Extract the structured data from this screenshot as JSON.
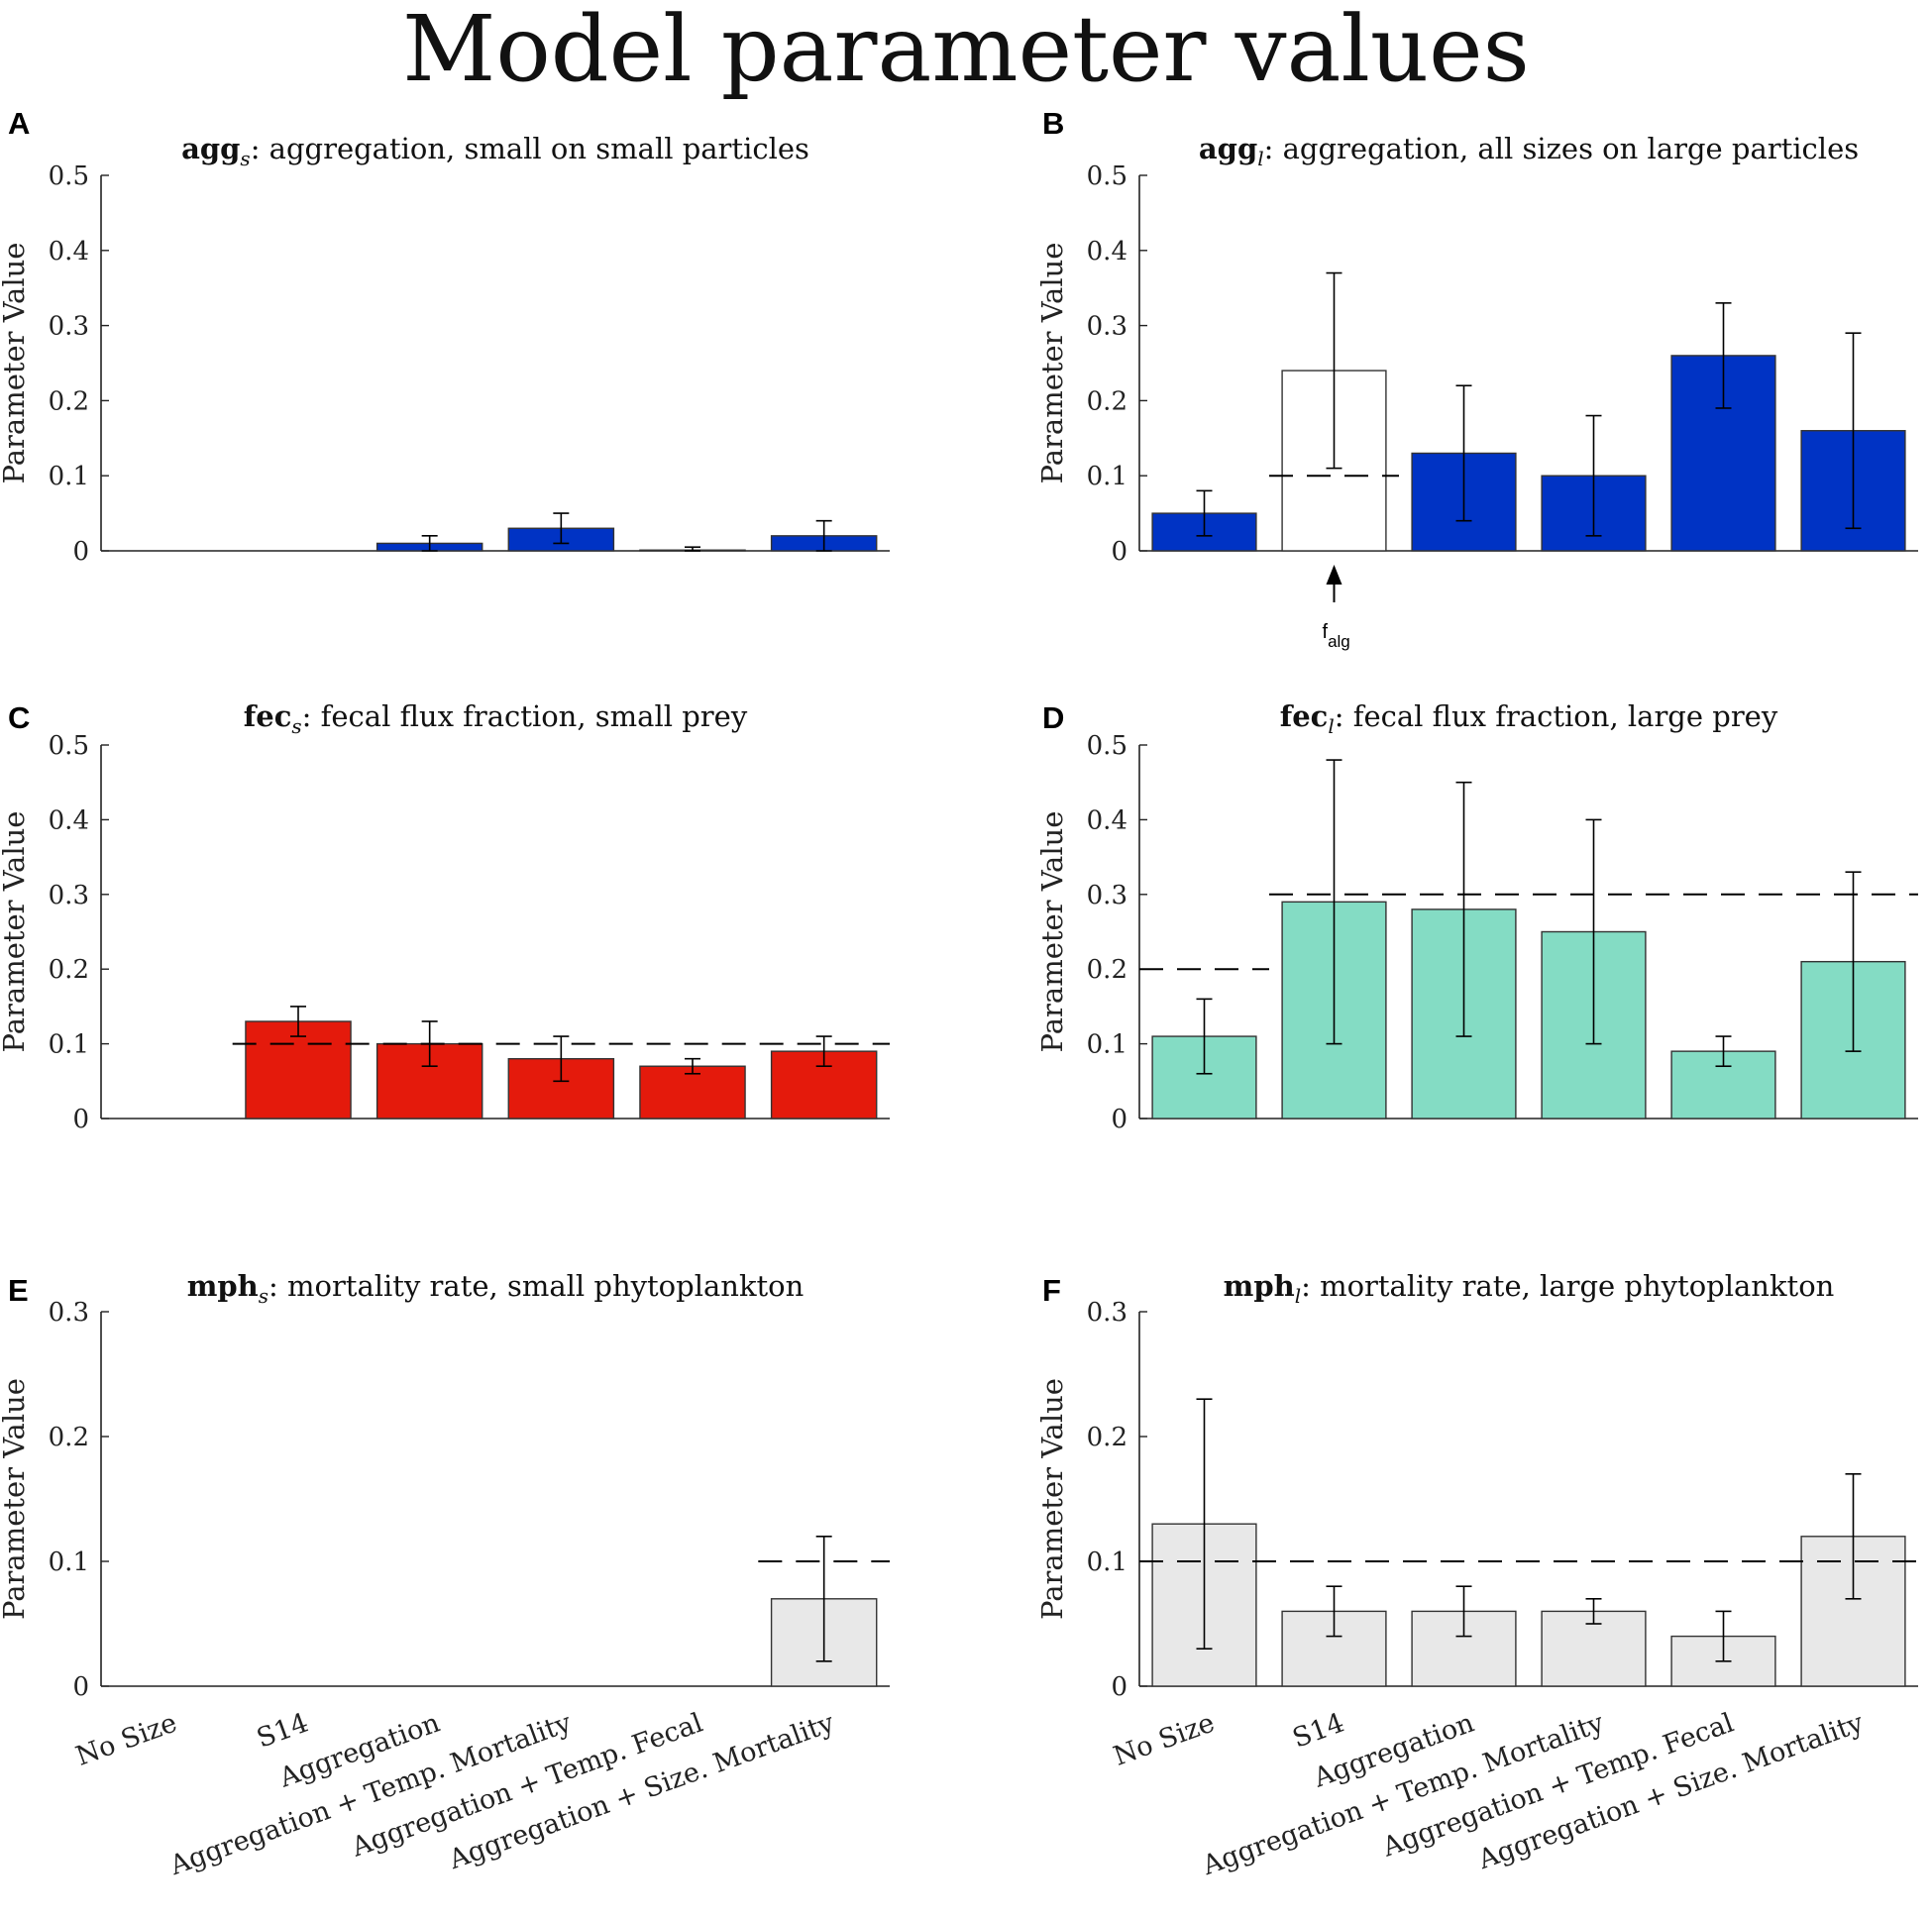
{
  "figure_title": "Model parameter values",
  "shared": {
    "ylabel": "Parameter Value",
    "categories": [
      "No Size",
      "S14",
      "Aggregation",
      "Aggregation + Temp. Mortality",
      "Aggregation + Temp. Fecal",
      "Aggregation + Size. Mortality"
    ]
  },
  "colors": {
    "blue": "#0033c4",
    "red": "#e41a0c",
    "teal": "#84dcc4",
    "grey": "#e8e8e8",
    "white": "#ffffff",
    "axis": "#222222"
  },
  "chart_data": [
    {
      "panel": "A",
      "type": "bar",
      "title_bold": "agg",
      "title_sub": "s",
      "title_rest": ": aggregation, small on small particles",
      "ylabel": "Parameter Value",
      "ylim": [
        0,
        0.5
      ],
      "yticks": [
        "0",
        "0.1",
        "0.2",
        "0.3",
        "0.4",
        "0.5"
      ],
      "categories": [
        "No Size",
        "S14",
        "Aggregation",
        "Aggregation + Temp. Mortality",
        "Aggregation + Temp. Fecal",
        "Aggregation + Size. Mortality"
      ],
      "values": [
        0,
        0,
        0.01,
        0.03,
        0.001,
        0.02
      ],
      "err_low": [
        null,
        null,
        0.0,
        0.01,
        0.0,
        0.0
      ],
      "err_high": [
        null,
        null,
        0.02,
        0.05,
        0.005,
        0.04
      ],
      "bar_colors": [
        "blue",
        "blue",
        "blue",
        "blue",
        "blue",
        "blue"
      ],
      "reference_lines": [],
      "show_xlabels": false
    },
    {
      "panel": "B",
      "type": "bar",
      "title_bold": "agg",
      "title_sub": "l",
      "title_rest": ": aggregation, all sizes on large particles",
      "ylabel": "Parameter Value",
      "ylim": [
        0,
        0.5
      ],
      "yticks": [
        "0",
        "0.1",
        "0.2",
        "0.3",
        "0.4",
        "0.5"
      ],
      "categories": [
        "No Size",
        "S14",
        "Aggregation",
        "Aggregation + Temp. Mortality",
        "Aggregation + Temp. Fecal",
        "Aggregation + Size. Mortality"
      ],
      "values": [
        0.05,
        0.24,
        0.13,
        0.1,
        0.26,
        0.16
      ],
      "err_low": [
        0.02,
        0.11,
        0.04,
        0.02,
        0.19,
        0.03
      ],
      "err_high": [
        0.08,
        0.37,
        0.22,
        0.18,
        0.33,
        0.29
      ],
      "bar_colors": [
        "blue",
        "white",
        "blue",
        "blue",
        "blue",
        "blue"
      ],
      "reference_lines": [
        {
          "y": 0.1,
          "from": 1,
          "to": 1
        }
      ],
      "annotation": {
        "base": "f",
        "sub": "alg",
        "category_index": 1
      },
      "show_xlabels": false
    },
    {
      "panel": "C",
      "type": "bar",
      "title_bold": "fec",
      "title_sub": "s",
      "title_rest": ": fecal flux fraction, small prey",
      "ylabel": "Parameter Value",
      "ylim": [
        0,
        0.5
      ],
      "yticks": [
        "0",
        "0.1",
        "0.2",
        "0.3",
        "0.4",
        "0.5"
      ],
      "categories": [
        "No Size",
        "S14",
        "Aggregation",
        "Aggregation + Temp. Mortality",
        "Aggregation + Temp. Fecal",
        "Aggregation + Size. Mortality"
      ],
      "values": [
        0,
        0.13,
        0.1,
        0.08,
        0.07,
        0.09
      ],
      "err_low": [
        null,
        0.11,
        0.07,
        0.05,
        0.06,
        0.07
      ],
      "err_high": [
        null,
        0.15,
        0.13,
        0.11,
        0.08,
        0.11
      ],
      "bar_colors": [
        "red",
        "red",
        "red",
        "red",
        "red",
        "red"
      ],
      "reference_lines": [
        {
          "y": 0.1,
          "from": 1,
          "to": 5
        }
      ],
      "show_xlabels": false
    },
    {
      "panel": "D",
      "type": "bar",
      "title_bold": "fec",
      "title_sub": "l",
      "title_rest": ": fecal flux fraction, large prey",
      "ylabel": "Parameter Value",
      "ylim": [
        0,
        0.5
      ],
      "yticks": [
        "0",
        "0.1",
        "0.2",
        "0.3",
        "0.4",
        "0.5"
      ],
      "categories": [
        "No Size",
        "S14",
        "Aggregation",
        "Aggregation + Temp. Mortality",
        "Aggregation + Temp. Fecal",
        "Aggregation + Size. Mortality"
      ],
      "values": [
        0.11,
        0.29,
        0.28,
        0.25,
        0.09,
        0.21
      ],
      "err_low": [
        0.06,
        0.1,
        0.11,
        0.1,
        0.07,
        0.09
      ],
      "err_high": [
        0.16,
        0.48,
        0.45,
        0.4,
        0.11,
        0.33
      ],
      "bar_colors": [
        "teal",
        "teal",
        "teal",
        "teal",
        "teal",
        "teal"
      ],
      "reference_lines": [
        {
          "y": 0.2,
          "from": 0,
          "to": 0
        },
        {
          "y": 0.3,
          "from": 1,
          "to": 5
        }
      ],
      "show_xlabels": false
    },
    {
      "panel": "E",
      "type": "bar",
      "title_bold": "mph",
      "title_sub": "s",
      "title_rest": ": mortality rate, small phytoplankton",
      "ylabel": "Parameter Value",
      "ylim": [
        0,
        0.3
      ],
      "yticks": [
        "0",
        "0.1",
        "0.2",
        "0.3"
      ],
      "categories": [
        "No Size",
        "S14",
        "Aggregation",
        "Aggregation + Temp. Mortality",
        "Aggregation + Temp. Fecal",
        "Aggregation + Size. Mortality"
      ],
      "values": [
        0,
        0,
        0,
        0,
        0,
        0.07
      ],
      "err_low": [
        null,
        null,
        null,
        null,
        null,
        0.02
      ],
      "err_high": [
        null,
        null,
        null,
        null,
        null,
        0.12
      ],
      "bar_colors": [
        "grey",
        "grey",
        "grey",
        "grey",
        "grey",
        "grey"
      ],
      "reference_lines": [
        {
          "y": 0.1,
          "from": 5,
          "to": 5
        }
      ],
      "show_xlabels": true
    },
    {
      "panel": "F",
      "type": "bar",
      "title_bold": "mph",
      "title_sub": "l",
      "title_rest": ": mortality rate, large phytoplankton",
      "ylabel": "Parameter Value",
      "ylim": [
        0,
        0.3
      ],
      "yticks": [
        "0",
        "0.1",
        "0.2",
        "0.3"
      ],
      "categories": [
        "No Size",
        "S14",
        "Aggregation",
        "Aggregation + Temp. Mortality",
        "Aggregation + Temp. Fecal",
        "Aggregation + Size. Mortality"
      ],
      "values": [
        0.13,
        0.06,
        0.06,
        0.06,
        0.04,
        0.12
      ],
      "err_low": [
        0.03,
        0.04,
        0.04,
        0.05,
        0.02,
        0.07
      ],
      "err_high": [
        0.23,
        0.08,
        0.08,
        0.07,
        0.06,
        0.17
      ],
      "bar_colors": [
        "grey",
        "grey",
        "grey",
        "grey",
        "grey",
        "grey"
      ],
      "reference_lines": [
        {
          "y": 0.1,
          "from": 0,
          "to": 5
        }
      ],
      "show_xlabels": true
    }
  ]
}
